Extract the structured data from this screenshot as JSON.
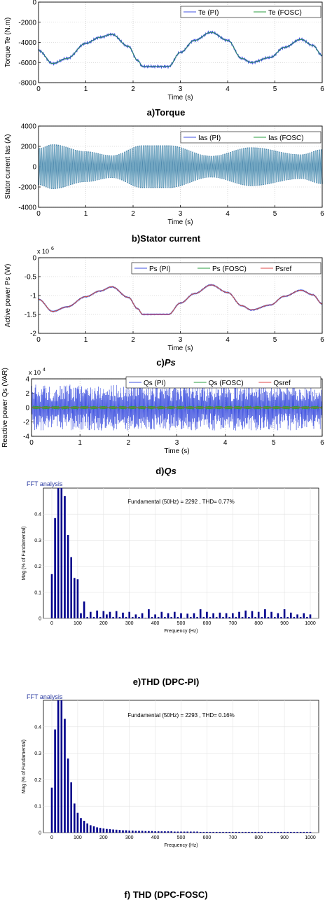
{
  "captions": {
    "a": "a)Torque",
    "b": "b)Stator current",
    "c_prefix": "c)",
    "c_italic": "Ps",
    "d_prefix": "d)",
    "d_italic": "Qs",
    "e": "e)THD (DPC-PI)",
    "f": "f) THD (DPC-FOSC)"
  },
  "fft_tags": {
    "e": "FFT analysis",
    "f": "FFT analysis"
  },
  "colors": {
    "pi": "#3f52e0",
    "fosc": "#2a9d3f",
    "ref": "#e04848",
    "bar": "#00008b",
    "grid": "#bfbfbf",
    "current": "#3a7ca5"
  },
  "chart_data": [
    {
      "type": "line",
      "title": "",
      "xlabel": "Time (s)",
      "ylabel": "Torque Te (N.m)",
      "xlim": [
        0,
        6
      ],
      "ylim": [
        -8000,
        0
      ],
      "xticks": [
        0,
        1,
        2,
        3,
        4,
        5,
        6
      ],
      "yticks": [
        0,
        -2000,
        -4000,
        -6000,
        -8000
      ],
      "legend": "top-right",
      "grid": true,
      "series": [
        {
          "name": "Te (PI)",
          "x": [
            0,
            0.3,
            0.6,
            1.0,
            1.3,
            1.55,
            1.9,
            2.1,
            2.2,
            2.6,
            2.75,
            3.0,
            3.3,
            3.65,
            4.0,
            4.3,
            4.5,
            4.9,
            5.2,
            5.55,
            5.8,
            6.0
          ],
          "values": [
            -4800,
            -6100,
            -5600,
            -4100,
            -3500,
            -3200,
            -4400,
            -5800,
            -6400,
            -6400,
            -6400,
            -5000,
            -3800,
            -3000,
            -3800,
            -5600,
            -6000,
            -5500,
            -4500,
            -3700,
            -4300,
            -5300
          ]
        },
        {
          "name": "Te (FOSC)",
          "x": [
            0,
            0.3,
            0.6,
            1.0,
            1.3,
            1.55,
            1.9,
            2.1,
            2.2,
            2.6,
            2.75,
            3.0,
            3.3,
            3.65,
            4.0,
            4.3,
            4.5,
            4.9,
            5.2,
            5.55,
            5.8,
            6.0
          ],
          "values": [
            -4800,
            -6100,
            -5600,
            -4100,
            -3500,
            -3200,
            -4400,
            -5800,
            -6400,
            -6400,
            -6400,
            -5000,
            -3800,
            -3000,
            -3800,
            -5600,
            -6000,
            -5500,
            -4500,
            -3700,
            -4300,
            -5300
          ]
        }
      ]
    },
    {
      "type": "line",
      "title": "",
      "xlabel": "Time (s)",
      "ylabel": "Stator current Ias (A)",
      "xlim": [
        0,
        6
      ],
      "ylim": [
        -4000,
        4000
      ],
      "xticks": [
        0,
        1,
        2,
        3,
        4,
        5,
        6
      ],
      "yticks": [
        4000,
        2000,
        0,
        -2000,
        -4000
      ],
      "legend": "top-right",
      "grid": true,
      "envelope": {
        "x": [
          0,
          0.3,
          1.0,
          1.55,
          2.2,
          2.75,
          3.65,
          4.5,
          5.55,
          6.0
        ],
        "values": [
          1800,
          2200,
          1500,
          1100,
          2100,
          2100,
          1050,
          1900,
          1200,
          1700
        ]
      },
      "series": [
        {
          "name": "Ias (PI)"
        },
        {
          "name": "Ias (FOSC)"
        }
      ]
    },
    {
      "type": "line",
      "title": "",
      "xlabel": "Time (s)",
      "ylabel": "Active power Ps (W)",
      "y_multiplier": "x 10^6",
      "xlim": [
        0,
        6
      ],
      "ylim": [
        -2,
        0
      ],
      "xticks": [
        0,
        1,
        2,
        3,
        4,
        5,
        6
      ],
      "yticks": [
        0,
        -0.5,
        -1,
        -1.5,
        -2
      ],
      "legend": "top-right",
      "grid": true,
      "series": [
        {
          "name": "Ps (PI)",
          "x": [
            0,
            0.3,
            0.6,
            1.0,
            1.3,
            1.55,
            1.9,
            2.1,
            2.2,
            2.6,
            2.75,
            3.0,
            3.3,
            3.65,
            4.0,
            4.3,
            4.5,
            4.9,
            5.2,
            5.55,
            5.8,
            6.0
          ],
          "values": [
            -1.1,
            -1.42,
            -1.3,
            -1.03,
            -0.88,
            -0.77,
            -1.05,
            -1.35,
            -1.5,
            -1.5,
            -1.5,
            -1.2,
            -0.95,
            -0.72,
            -0.92,
            -1.27,
            -1.38,
            -1.25,
            -1.02,
            -0.86,
            -0.98,
            -1.22
          ]
        },
        {
          "name": "Ps (FOSC)",
          "x": [
            0,
            0.3,
            0.6,
            1.0,
            1.3,
            1.55,
            1.9,
            2.1,
            2.2,
            2.6,
            2.75,
            3.0,
            3.3,
            3.65,
            4.0,
            4.3,
            4.5,
            4.9,
            5.2,
            5.55,
            5.8,
            6.0
          ],
          "values": [
            -1.1,
            -1.42,
            -1.3,
            -1.03,
            -0.88,
            -0.77,
            -1.05,
            -1.35,
            -1.5,
            -1.5,
            -1.5,
            -1.2,
            -0.95,
            -0.72,
            -0.92,
            -1.27,
            -1.38,
            -1.25,
            -1.02,
            -0.86,
            -0.98,
            -1.22
          ]
        },
        {
          "name": "Psref",
          "x": [
            0,
            0.3,
            0.6,
            1.0,
            1.3,
            1.55,
            1.9,
            2.1,
            2.2,
            2.6,
            2.75,
            3.0,
            3.3,
            3.65,
            4.0,
            4.3,
            4.5,
            4.9,
            5.2,
            5.55,
            5.8,
            6.0
          ],
          "values": [
            -1.1,
            -1.42,
            -1.3,
            -1.03,
            -0.88,
            -0.77,
            -1.05,
            -1.35,
            -1.5,
            -1.5,
            -1.5,
            -1.2,
            -0.95,
            -0.72,
            -0.92,
            -1.27,
            -1.38,
            -1.25,
            -1.02,
            -0.86,
            -0.98,
            -1.22
          ]
        }
      ]
    },
    {
      "type": "line",
      "title": "",
      "xlabel": "Time (s)",
      "ylabel": "Reactive power Qs (VAR)",
      "y_multiplier": "x 10^4",
      "xlim": [
        0,
        6
      ],
      "ylim": [
        -4,
        4
      ],
      "xticks": [
        0,
        1,
        2,
        3,
        4,
        5,
        6
      ],
      "yticks": [
        4,
        2,
        0,
        -2,
        -4
      ],
      "legend": "top-right",
      "grid": true,
      "series": [
        {
          "name": "Qs (PI)",
          "amplitude": 3.2
        },
        {
          "name": "Qs (FOSC)",
          "amplitude": 0.2
        },
        {
          "name": "Qsref",
          "amplitude": 0
        }
      ]
    },
    {
      "type": "bar",
      "title": "Fundamental (50Hz) = 2292 , THD= 0.77%",
      "xlabel": "Frequency (Hz)",
      "ylabel": "Mag (% of Fundamental)",
      "xlim": [
        0,
        1000
      ],
      "ylim": [
        0,
        0.5
      ],
      "xticks": [
        0,
        100,
        200,
        300,
        400,
        500,
        600,
        700,
        800,
        900,
        1000
      ],
      "yticks": [
        0.4,
        0.3,
        0.2,
        0.1,
        0
      ],
      "bar_spacing_hz": 12.5,
      "values": [
        0.17,
        0.385,
        0.5,
        0.5,
        0.47,
        0.32,
        0.235,
        0.155,
        0.15,
        0.02,
        0.065,
        0.005,
        0.025,
        0.005,
        0.03,
        0.005,
        0.028,
        0.015,
        0.025,
        0.005,
        0.028,
        0.005,
        0.022,
        0.005,
        0.025,
        0.005,
        0.015,
        0.005,
        0.02,
        0.002,
        0.035,
        0.005,
        0.015,
        0.005,
        0.025,
        0.005,
        0.02,
        0.005,
        0.025,
        0.005,
        0.02,
        0.002,
        0.018,
        0.005,
        0.02,
        0.005,
        0.035,
        0.005,
        0.025,
        0.005,
        0.02,
        0.005,
        0.022,
        0.005,
        0.02,
        0.005,
        0.02,
        0.005,
        0.025,
        0.005,
        0.03,
        0.005,
        0.028,
        0.005,
        0.025,
        0.005,
        0.035,
        0.005,
        0.025,
        0.005,
        0.02,
        0.005,
        0.035,
        0.005,
        0.022,
        0.005,
        0.015,
        0.005,
        0.02,
        0.005,
        0.015
      ]
    },
    {
      "type": "bar",
      "title": "Fundamental (50Hz) = 2293 , THD= 0.16%",
      "xlabel": "Frequency (Hz)",
      "ylabel": "Mag (% of Fundamental)",
      "xlim": [
        0,
        1000
      ],
      "ylim": [
        0,
        0.5
      ],
      "xticks": [
        0,
        100,
        200,
        300,
        400,
        500,
        600,
        700,
        800,
        900,
        1000
      ],
      "yticks": [
        0.4,
        0.3,
        0.2,
        0.1,
        0
      ],
      "bar_spacing_hz": 12.5,
      "values": [
        0.17,
        0.39,
        0.5,
        0.5,
        0.43,
        0.28,
        0.19,
        0.11,
        0.075,
        0.055,
        0.045,
        0.035,
        0.028,
        0.024,
        0.02,
        0.018,
        0.016,
        0.014,
        0.013,
        0.012,
        0.011,
        0.01,
        0.009,
        0.009,
        0.008,
        0.008,
        0.007,
        0.007,
        0.007,
        0.006,
        0.006,
        0.006,
        0.005,
        0.005,
        0.005,
        0.005,
        0.005,
        0.005,
        0.004,
        0.004,
        0.004,
        0.004,
        0.004,
        0.004,
        0.004,
        0.004,
        0.003,
        0.003,
        0.003,
        0.003,
        0.003,
        0.003,
        0.003,
        0.003,
        0.003,
        0.003,
        0.003,
        0.003,
        0.003,
        0.003,
        0.003,
        0.003,
        0.003,
        0.003,
        0.003,
        0.003,
        0.003,
        0.003,
        0.003,
        0.003,
        0.003,
        0.003,
        0.003,
        0.003,
        0.003,
        0.003,
        0.003,
        0.003,
        0.003,
        0.003,
        0.003
      ]
    }
  ]
}
